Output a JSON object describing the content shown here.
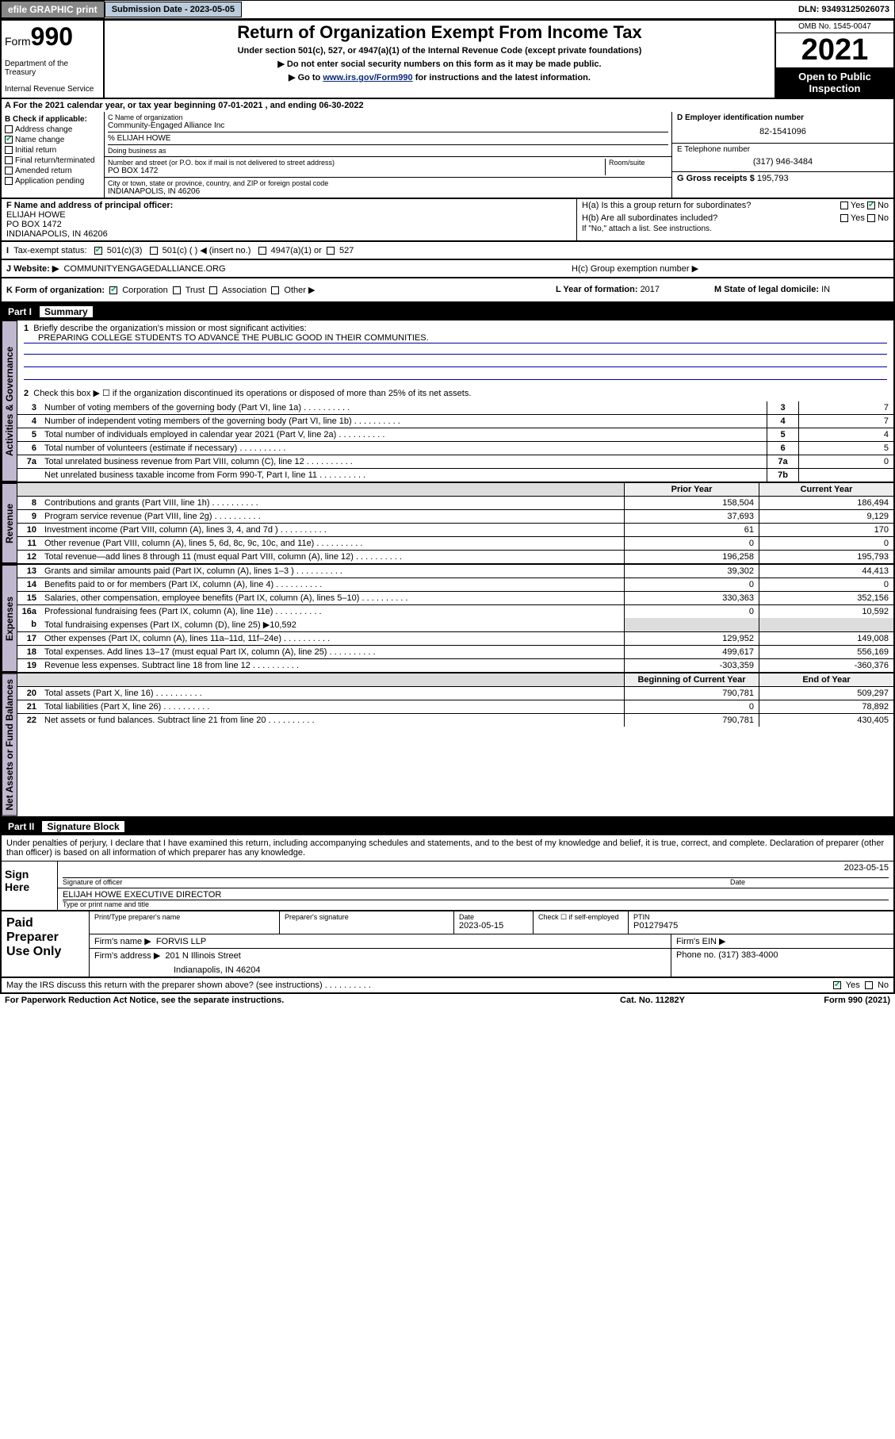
{
  "topbar": {
    "efile": "efile GRAPHIC print",
    "subdate_label": "Submission Date - ",
    "subdate": "2023-05-05",
    "dln_label": "DLN: ",
    "dln": "93493125026073"
  },
  "header": {
    "form_small": "Form",
    "form_big": "990",
    "dept": "Department of the Treasury",
    "irs": "Internal Revenue Service",
    "title": "Return of Organization Exempt From Income Tax",
    "sub1": "Under section 501(c), 527, or 4947(a)(1) of the Internal Revenue Code (except private foundations)",
    "sub2": "▶ Do not enter social security numbers on this form as it may be made public.",
    "sub3_pre": "▶ Go to ",
    "sub3_link": "www.irs.gov/Form990",
    "sub3_post": " for instructions and the latest information.",
    "omb": "OMB No. 1545-0047",
    "year": "2021",
    "open": "Open to Public Inspection"
  },
  "period": {
    "a": "A For the 2021 calendar year, or tax year beginning ",
    "begin": "07-01-2021",
    "mid": " , and ending ",
    "end": "06-30-2022"
  },
  "boxB": {
    "label": "B Check if applicable:",
    "address": "Address change",
    "name": "Name change",
    "initial": "Initial return",
    "final": "Final return/terminated",
    "amended": "Amended return",
    "app": "Application pending"
  },
  "boxC": {
    "name_label": "C Name of organization",
    "name": "Community-Engaged Alliance Inc",
    "care_of": "% ELIJAH HOWE",
    "dba_label": "Doing business as",
    "addr_label": "Number and street (or P.O. box if mail is not delivered to street address)",
    "room_label": "Room/suite",
    "addr": "PO BOX 1472",
    "city_label": "City or town, state or province, country, and ZIP or foreign postal code",
    "city": "INDIANAPOLIS, IN  46206"
  },
  "boxD": {
    "ein_label": "D Employer identification number",
    "ein": "82-1541096",
    "tel_label": "E Telephone number",
    "tel": "(317) 946-3484",
    "gross_label": "G Gross receipts $ ",
    "gross": "195,793"
  },
  "boxF": {
    "label": "F Name and address of principal officer:",
    "name": "ELIJAH HOWE",
    "addr1": "PO BOX 1472",
    "addr2": "INDIANAPOLIS, IN  46206"
  },
  "boxH": {
    "ha": "H(a)  Is this a group return for subordinates?",
    "hb": "H(b)  Are all subordinates included?",
    "hb_note": "If \"No,\" attach a list. See instructions.",
    "hc": "H(c)  Group exemption number ▶",
    "yes": "Yes",
    "no": "No"
  },
  "boxI": {
    "label": "Tax-exempt status:",
    "c3": "501(c)(3)",
    "c": "501(c) (  ) ◀ (insert no.)",
    "a1": "4947(a)(1) or",
    "s527": "527"
  },
  "boxJ": {
    "label": "J  Website: ▶",
    "site": "COMMUNITYENGAGEDALLIANCE.ORG"
  },
  "boxK": {
    "label": "K Form of organization:",
    "corp": "Corporation",
    "trust": "Trust",
    "assoc": "Association",
    "other": "Other ▶"
  },
  "boxL": {
    "label": "L Year of formation: ",
    "val": "2017"
  },
  "boxM": {
    "label": "M State of legal domicile: ",
    "val": "IN"
  },
  "part1": {
    "title": "Part I",
    "subtitle": "Summary",
    "q1": "Briefly describe the organization's mission or most significant activities:",
    "mission": "PREPARING COLLEGE STUDENTS TO ADVANCE THE PUBLIC GOOD IN THEIR COMMUNITIES.",
    "q2": "Check this box ▶ ☐  if the organization discontinued its operations or disposed of more than 25% of its net assets.",
    "rows_single": [
      {
        "n": "3",
        "t": "Number of voting members of the governing body (Part VI, line 1a)",
        "box": "3",
        "v": "7"
      },
      {
        "n": "4",
        "t": "Number of independent voting members of the governing body (Part VI, line 1b)",
        "box": "4",
        "v": "7"
      },
      {
        "n": "5",
        "t": "Total number of individuals employed in calendar year 2021 (Part V, line 2a)",
        "box": "5",
        "v": "4"
      },
      {
        "n": "6",
        "t": "Total number of volunteers (estimate if necessary)",
        "box": "6",
        "v": "5"
      },
      {
        "n": "7a",
        "t": "Total unrelated business revenue from Part VIII, column (C), line 12",
        "box": "7a",
        "v": "0"
      },
      {
        "n": "",
        "t": "Net unrelated business taxable income from Form 990-T, Part I, line 11",
        "box": "7b",
        "v": ""
      }
    ],
    "tab_gov": "Activities & Governance",
    "tab_rev": "Revenue",
    "tab_exp": "Expenses",
    "tab_net": "Net Assets or Fund Balances",
    "col_prior": "Prior Year",
    "col_curr": "Current Year",
    "rev_rows": [
      {
        "n": "8",
        "t": "Contributions and grants (Part VIII, line 1h)",
        "p": "158,504",
        "c": "186,494"
      },
      {
        "n": "9",
        "t": "Program service revenue (Part VIII, line 2g)",
        "p": "37,693",
        "c": "9,129"
      },
      {
        "n": "10",
        "t": "Investment income (Part VIII, column (A), lines 3, 4, and 7d )",
        "p": "61",
        "c": "170"
      },
      {
        "n": "11",
        "t": "Other revenue (Part VIII, column (A), lines 5, 6d, 8c, 9c, 10c, and 11e)",
        "p": "0",
        "c": "0"
      },
      {
        "n": "12",
        "t": "Total revenue—add lines 8 through 11 (must equal Part VIII, column (A), line 12)",
        "p": "196,258",
        "c": "195,793"
      }
    ],
    "exp_rows": [
      {
        "n": "13",
        "t": "Grants and similar amounts paid (Part IX, column (A), lines 1–3 )",
        "p": "39,302",
        "c": "44,413"
      },
      {
        "n": "14",
        "t": "Benefits paid to or for members (Part IX, column (A), line 4)",
        "p": "0",
        "c": "0"
      },
      {
        "n": "15",
        "t": "Salaries, other compensation, employee benefits (Part IX, column (A), lines 5–10)",
        "p": "330,363",
        "c": "352,156"
      },
      {
        "n": "16a",
        "t": "Professional fundraising fees (Part IX, column (A), line 11e)",
        "p": "0",
        "c": "10,592"
      }
    ],
    "exp_16b": {
      "n": "b",
      "t": "Total fundraising expenses (Part IX, column (D), line 25) ▶10,592"
    },
    "exp_rows2": [
      {
        "n": "17",
        "t": "Other expenses (Part IX, column (A), lines 11a–11d, 11f–24e)",
        "p": "129,952",
        "c": "149,008"
      },
      {
        "n": "18",
        "t": "Total expenses. Add lines 13–17 (must equal Part IX, column (A), line 25)",
        "p": "499,617",
        "c": "556,169"
      },
      {
        "n": "19",
        "t": "Revenue less expenses. Subtract line 18 from line 12",
        "p": "-303,359",
        "c": "-360,376"
      }
    ],
    "col_begin": "Beginning of Current Year",
    "col_end": "End of Year",
    "net_rows": [
      {
        "n": "20",
        "t": "Total assets (Part X, line 16)",
        "p": "790,781",
        "c": "509,297"
      },
      {
        "n": "21",
        "t": "Total liabilities (Part X, line 26)",
        "p": "0",
        "c": "78,892"
      },
      {
        "n": "22",
        "t": "Net assets or fund balances. Subtract line 21 from line 20",
        "p": "790,781",
        "c": "430,405"
      }
    ]
  },
  "part2": {
    "title": "Part II",
    "subtitle": "Signature Block",
    "decl": "Under penalties of perjury, I declare that I have examined this return, including accompanying schedules and statements, and to the best of my knowledge and belief, it is true, correct, and complete. Declaration of preparer (other than officer) is based on all information of which preparer has any knowledge.",
    "sign_here": "Sign Here",
    "sig_officer": "Signature of officer",
    "sig_date": "Date",
    "sig_date_val": "2023-05-15",
    "sig_name": "ELIJAH HOWE  EXECUTIVE DIRECTOR",
    "sig_name_label": "Type or print name and title",
    "paid": "Paid Preparer Use Only",
    "pp_name_label": "Print/Type preparer's name",
    "pp_sig_label": "Preparer's signature",
    "pp_date_label": "Date",
    "pp_date": "2023-05-15",
    "pp_check_label": "Check ☐ if self-employed",
    "pp_ptin_label": "PTIN",
    "pp_ptin": "P01279475",
    "pp_firm_label": "Firm's name    ▶",
    "pp_firm": "FORVIS LLP",
    "pp_ein_label": "Firm's EIN ▶",
    "pp_addr_label": "Firm's address ▶",
    "pp_addr1": "201 N Illinois Street",
    "pp_addr2": "Indianapolis, IN  46204",
    "pp_phone_label": "Phone no. ",
    "pp_phone": "(317) 383-4000",
    "may_irs": "May the IRS discuss this return with the preparer shown above? (see instructions)",
    "paperwork": "For Paperwork Reduction Act Notice, see the separate instructions.",
    "catno": "Cat. No. 11282Y",
    "formno": "Form 990 (2021)"
  }
}
